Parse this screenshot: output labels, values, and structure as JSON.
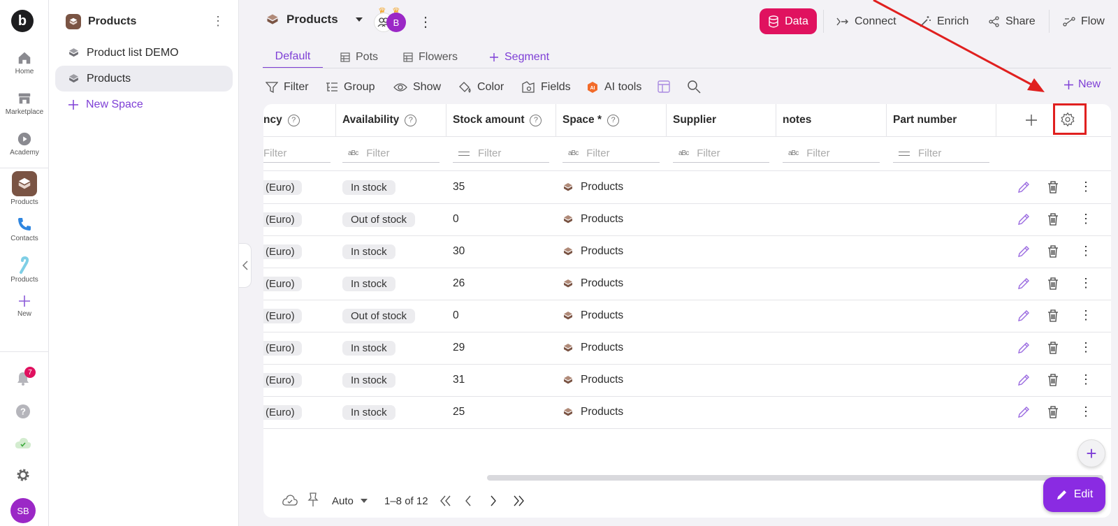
{
  "rail": {
    "logo": "b",
    "items": [
      {
        "label": "Home",
        "icon": "home-icon"
      },
      {
        "label": "Marketplace",
        "icon": "store-icon"
      },
      {
        "label": "Academy",
        "icon": "play-icon"
      },
      {
        "label": "Products",
        "icon": "box-icon"
      },
      {
        "label": "Contacts",
        "icon": "phone-icon"
      },
      {
        "label": "Products",
        "icon": "candy-cane-icon"
      },
      {
        "label": "New",
        "icon": "plus-icon"
      }
    ],
    "notification_count": "7",
    "user_initials": "SB"
  },
  "spaces": {
    "title": "Products",
    "items": [
      {
        "label": "Product list DEMO"
      },
      {
        "label": "Products"
      }
    ],
    "new_space": "New Space"
  },
  "header": {
    "title": "Products",
    "avatar_initial": "B",
    "buttons": {
      "data": "Data",
      "connect": "Connect",
      "enrich": "Enrich",
      "share": "Share",
      "flow": "Flow"
    },
    "accent": "#e0125f"
  },
  "tabs": [
    "Default",
    "Pots",
    "Flowers",
    "Segment"
  ],
  "toolbar": {
    "filter": "Filter",
    "group": "Group",
    "show": "Show",
    "color": "Color",
    "fields": "Fields",
    "ai_tools": "AI tools",
    "new": "New"
  },
  "table": {
    "columns": [
      "ncy",
      "Availability",
      "Stock amount",
      "Space *",
      "Supplier",
      "notes",
      "Part number"
    ],
    "filter_placeholder": "Filter",
    "rows": [
      {
        "currency": "(Euro)",
        "availability": "In stock",
        "stock": "35",
        "space": "Products"
      },
      {
        "currency": "(Euro)",
        "availability": "Out of stock",
        "stock": "0",
        "space": "Products"
      },
      {
        "currency": "(Euro)",
        "availability": "In stock",
        "stock": "30",
        "space": "Products"
      },
      {
        "currency": "(Euro)",
        "availability": "In stock",
        "stock": "26",
        "space": "Products"
      },
      {
        "currency": "(Euro)",
        "availability": "Out of stock",
        "stock": "0",
        "space": "Products"
      },
      {
        "currency": "(Euro)",
        "availability": "In stock",
        "stock": "29",
        "space": "Products"
      },
      {
        "currency": "(Euro)",
        "availability": "In stock",
        "stock": "31",
        "space": "Products"
      },
      {
        "currency": "(Euro)",
        "availability": "In stock",
        "stock": "25",
        "space": "Products"
      }
    ]
  },
  "footer": {
    "row_height": "Auto",
    "range": "1–8 of 12"
  },
  "edit_button": "Edit",
  "brand_purple": "#7e3fd6"
}
